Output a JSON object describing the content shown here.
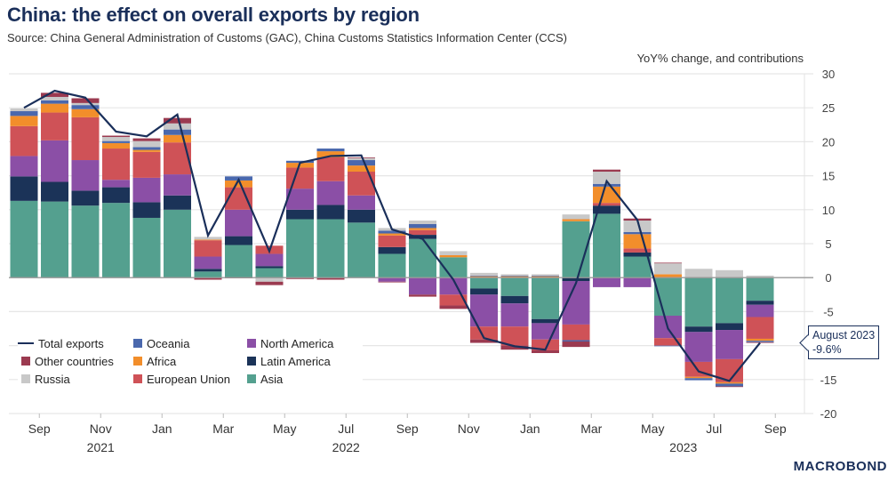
{
  "header": {
    "title": "China: the effect on overall exports by region",
    "subtitle": "Source: China General Administration of Customs (GAC), China Customs Statistics Information Center (CCS)",
    "unit_label": "YoY% change, and contributions"
  },
  "logo": "MACROBOND",
  "callout": {
    "line1": "August 2023",
    "line2": "-9.6%"
  },
  "chart_data": {
    "type": "bar",
    "stacked": true,
    "title": "China: the effect on overall exports by region",
    "ylabel": "YoY% change, and contributions",
    "xlabel": "",
    "ylim": [
      -20,
      30
    ],
    "yticks": [
      30,
      25,
      20,
      15,
      10,
      5,
      0,
      -5,
      -10,
      -15,
      -20
    ],
    "y_axis_side": "right",
    "grid": true,
    "legend_position": "bottom-left",
    "categories": [
      "Aug 2021",
      "Sep 2021",
      "Oct 2021",
      "Nov 2021",
      "Dec 2021",
      "Jan 2022",
      "Feb 2022",
      "Mar 2022",
      "Apr 2022",
      "May 2022",
      "Jun 2022",
      "Jul 2022",
      "Aug 2022",
      "Sep 2022",
      "Oct 2022",
      "Nov 2022",
      "Dec 2022",
      "Jan 2023",
      "Feb 2023",
      "Mar 2023",
      "Apr 2023",
      "May 2023",
      "Jun 2023",
      "Jul 2023",
      "Aug 2023"
    ],
    "x_tick_labels": [
      {
        "label": "Sep",
        "index": 1
      },
      {
        "label": "Nov",
        "index": 3
      },
      {
        "label": "Jan",
        "index": 5
      },
      {
        "label": "Mar",
        "index": 7
      },
      {
        "label": "May",
        "index": 9
      },
      {
        "label": "Jul",
        "index": 11
      },
      {
        "label": "Sep",
        "index": 13
      },
      {
        "label": "Nov",
        "index": 15
      },
      {
        "label": "Jan",
        "index": 17
      },
      {
        "label": "Mar",
        "index": 19
      },
      {
        "label": "May",
        "index": 21
      },
      {
        "label": "Jul",
        "index": 23
      },
      {
        "label": "Sep",
        "index": 25
      }
    ],
    "year_labels": [
      {
        "label": "2021",
        "index": 3
      },
      {
        "label": "2022",
        "index": 11
      },
      {
        "label": "2023",
        "index": 22
      }
    ],
    "series": [
      {
        "name": "Asia",
        "color": "#54a08f",
        "values": [
          11.3,
          11.2,
          10.6,
          11.0,
          8.8,
          10.0,
          0.9,
          4.8,
          1.4,
          8.6,
          8.6,
          8.1,
          3.5,
          5.7,
          3.0,
          -1.6,
          -2.7,
          -6.1,
          8.3,
          9.4,
          3.1,
          -5.6,
          -7.2,
          -6.7,
          -3.4
        ]
      },
      {
        "name": "Latin America",
        "color": "#1b3358",
        "values": [
          3.6,
          2.9,
          2.2,
          2.3,
          2.3,
          2.1,
          0.4,
          1.3,
          0.3,
          1.4,
          2.1,
          1.9,
          1.0,
          0.6,
          0.0,
          -0.9,
          -1.1,
          -0.6,
          -0.5,
          1.2,
          0.6,
          0.0,
          -0.8,
          -1.0,
          -0.6
        ]
      },
      {
        "name": "North America",
        "color": "#8b4fa6",
        "values": [
          3.0,
          6.1,
          4.5,
          1.1,
          3.6,
          3.1,
          1.8,
          3.9,
          1.8,
          3.1,
          3.5,
          2.1,
          -0.6,
          -2.5,
          -2.5,
          -4.7,
          -3.4,
          -2.4,
          -6.4,
          -1.4,
          -1.4,
          -3.3,
          -4.4,
          -4.3,
          -1.8
        ]
      },
      {
        "name": "European Union",
        "color": "#cf5257",
        "values": [
          4.4,
          4.1,
          6.3,
          4.6,
          3.8,
          4.7,
          2.4,
          3.3,
          1.2,
          3.1,
          3.5,
          3.5,
          1.7,
          0.7,
          -1.6,
          -1.9,
          -2.8,
          -1.6,
          -2.3,
          0.4,
          0.6,
          -1.1,
          -2.2,
          -3.4,
          -3.2
        ]
      },
      {
        "name": "Africa",
        "color": "#f28e2b",
        "values": [
          1.5,
          1.3,
          1.2,
          0.8,
          0.3,
          1.1,
          0.1,
          1.0,
          0.0,
          0.7,
          0.9,
          0.9,
          0.3,
          0.3,
          0.3,
          0.2,
          0.2,
          0.2,
          0.3,
          2.4,
          2.1,
          0.5,
          -0.2,
          -0.2,
          -0.3
        ]
      },
      {
        "name": "Oceania",
        "color": "#4a68ad",
        "values": [
          0.7,
          0.5,
          0.6,
          0.3,
          0.4,
          0.8,
          0.0,
          0.6,
          0.0,
          0.3,
          0.4,
          0.8,
          0.4,
          0.6,
          0.0,
          0.1,
          0.1,
          0.1,
          -0.2,
          0.4,
          0.3,
          -0.1,
          -0.3,
          -0.4,
          -0.2
        ]
      },
      {
        "name": "Russia",
        "color": "#c8c8c8",
        "values": [
          0.4,
          0.5,
          0.3,
          0.6,
          0.9,
          0.9,
          0.4,
          0.0,
          -0.6,
          0.0,
          0.0,
          0.3,
          0.4,
          0.5,
          0.6,
          0.4,
          0.2,
          0.2,
          0.7,
          1.8,
          1.7,
          1.6,
          1.3,
          1.1,
          0.3
        ]
      },
      {
        "name": "Other countries",
        "color": "#9b3a50",
        "values": [
          0.0,
          0.6,
          0.7,
          0.2,
          0.4,
          0.8,
          -0.3,
          -0.1,
          -0.5,
          -0.2,
          -0.3,
          0.1,
          -0.1,
          -0.3,
          -0.5,
          -0.5,
          -0.6,
          -0.4,
          -0.8,
          0.3,
          0.3,
          0.1,
          0.0,
          -0.1,
          -0.1
        ]
      }
    ],
    "line_series": {
      "name": "Total exports",
      "color": "#1a2f5a",
      "values": [
        25.0,
        27.5,
        26.5,
        21.5,
        20.8,
        24.0,
        6.2,
        14.4,
        3.9,
        16.9,
        17.9,
        18.0,
        7.1,
        5.7,
        -0.3,
        -8.9,
        -10.1,
        -10.6,
        -0.8,
        14.2,
        8.5,
        -7.5,
        -13.8,
        -15.2,
        -9.6
      ]
    },
    "legend": [
      {
        "name": "Total exports",
        "kind": "line",
        "color": "#1a2f5a"
      },
      {
        "name": "Oceania",
        "kind": "box",
        "color": "#4a68ad"
      },
      {
        "name": "North America",
        "kind": "box",
        "color": "#8b4fa6"
      },
      {
        "name": "Other countries",
        "kind": "box",
        "color": "#9b3a50"
      },
      {
        "name": "Africa",
        "kind": "box",
        "color": "#f28e2b"
      },
      {
        "name": "Latin America",
        "kind": "box",
        "color": "#1b3358"
      },
      {
        "name": "Russia",
        "kind": "box",
        "color": "#c8c8c8"
      },
      {
        "name": "European Union",
        "kind": "box",
        "color": "#cf5257"
      },
      {
        "name": "Asia",
        "kind": "box",
        "color": "#54a08f"
      }
    ],
    "annotation": {
      "label": "August 2023",
      "value": "-9.6%"
    }
  }
}
